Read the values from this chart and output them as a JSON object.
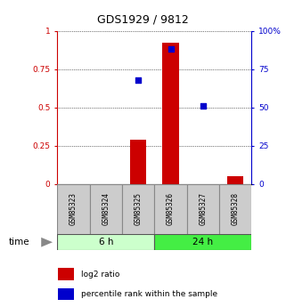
{
  "title": "GDS1929 / 9812",
  "samples": [
    "GSM85323",
    "GSM85324",
    "GSM85325",
    "GSM85326",
    "GSM85327",
    "GSM85328"
  ],
  "log2_ratio": [
    0.0,
    0.0,
    0.29,
    0.92,
    0.0,
    0.05
  ],
  "percentile_rank": [
    null,
    null,
    0.68,
    0.88,
    0.51,
    null
  ],
  "bar_color_red": "#cc0000",
  "bar_color_blue": "#0000cc",
  "left_axis_color": "#cc0000",
  "right_axis_color": "#0000cc",
  "ylim_left": [
    0,
    1
  ],
  "ylim_right": [
    0,
    100
  ],
  "yticks_left": [
    0,
    0.25,
    0.5,
    0.75,
    1.0
  ],
  "ytick_labels_left": [
    "0",
    "0.25",
    "0.5",
    "0.75",
    "1"
  ],
  "yticks_right": [
    0,
    25,
    50,
    75,
    100
  ],
  "ytick_labels_right": [
    "0",
    "25",
    "50",
    "75",
    "100%"
  ],
  "legend_log2": "log2 ratio",
  "legend_pct": "percentile rank within the sample",
  "group_6h_color": "#ccffcc",
  "group_24h_color": "#44ee44",
  "bar_width": 0.5,
  "sample_box_color": "#cccccc",
  "sample_box_edge": "#888888",
  "spine_color": "#888888"
}
